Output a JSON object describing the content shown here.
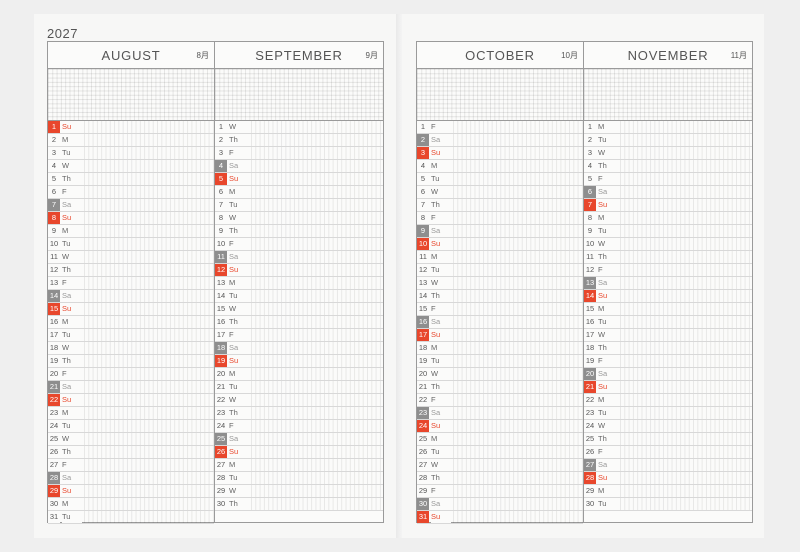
{
  "year": "2027",
  "months": [
    {
      "name": "AUGUST",
      "num": "8月",
      "days": [
        {
          "n": "1",
          "d": "Su"
        },
        {
          "n": "2",
          "d": "M"
        },
        {
          "n": "3",
          "d": "Tu"
        },
        {
          "n": "4",
          "d": "W"
        },
        {
          "n": "5",
          "d": "Th"
        },
        {
          "n": "6",
          "d": "F"
        },
        {
          "n": "7",
          "d": "Sa"
        },
        {
          "n": "8",
          "d": "Su"
        },
        {
          "n": "9",
          "d": "M"
        },
        {
          "n": "10",
          "d": "Tu"
        },
        {
          "n": "11",
          "d": "W"
        },
        {
          "n": "12",
          "d": "Th"
        },
        {
          "n": "13",
          "d": "F"
        },
        {
          "n": "14",
          "d": "Sa"
        },
        {
          "n": "15",
          "d": "Su"
        },
        {
          "n": "16",
          "d": "M"
        },
        {
          "n": "17",
          "d": "Tu"
        },
        {
          "n": "18",
          "d": "W"
        },
        {
          "n": "19",
          "d": "Th"
        },
        {
          "n": "20",
          "d": "F"
        },
        {
          "n": "21",
          "d": "Sa"
        },
        {
          "n": "22",
          "d": "Su"
        },
        {
          "n": "23",
          "d": "M"
        },
        {
          "n": "24",
          "d": "Tu"
        },
        {
          "n": "25",
          "d": "W"
        },
        {
          "n": "26",
          "d": "Th"
        },
        {
          "n": "27",
          "d": "F"
        },
        {
          "n": "28",
          "d": "Sa"
        },
        {
          "n": "29",
          "d": "Su"
        },
        {
          "n": "30",
          "d": "M"
        },
        {
          "n": "31",
          "d": "Tu"
        }
      ]
    },
    {
      "name": "SEPTEMBER",
      "num": "9月",
      "days": [
        {
          "n": "1",
          "d": "W"
        },
        {
          "n": "2",
          "d": "Th"
        },
        {
          "n": "3",
          "d": "F"
        },
        {
          "n": "4",
          "d": "Sa"
        },
        {
          "n": "5",
          "d": "Su"
        },
        {
          "n": "6",
          "d": "M"
        },
        {
          "n": "7",
          "d": "Tu"
        },
        {
          "n": "8",
          "d": "W"
        },
        {
          "n": "9",
          "d": "Th"
        },
        {
          "n": "10",
          "d": "F"
        },
        {
          "n": "11",
          "d": "Sa"
        },
        {
          "n": "12",
          "d": "Su"
        },
        {
          "n": "13",
          "d": "M"
        },
        {
          "n": "14",
          "d": "Tu"
        },
        {
          "n": "15",
          "d": "W"
        },
        {
          "n": "16",
          "d": "Th"
        },
        {
          "n": "17",
          "d": "F"
        },
        {
          "n": "18",
          "d": "Sa"
        },
        {
          "n": "19",
          "d": "Su"
        },
        {
          "n": "20",
          "d": "M"
        },
        {
          "n": "21",
          "d": "Tu"
        },
        {
          "n": "22",
          "d": "W"
        },
        {
          "n": "23",
          "d": "Th"
        },
        {
          "n": "24",
          "d": "F"
        },
        {
          "n": "25",
          "d": "Sa"
        },
        {
          "n": "26",
          "d": "Su"
        },
        {
          "n": "27",
          "d": "M"
        },
        {
          "n": "28",
          "d": "Tu"
        },
        {
          "n": "29",
          "d": "W"
        },
        {
          "n": "30",
          "d": "Th"
        }
      ]
    },
    {
      "name": "OCTOBER",
      "num": "10月",
      "days": [
        {
          "n": "1",
          "d": "F"
        },
        {
          "n": "2",
          "d": "Sa"
        },
        {
          "n": "3",
          "d": "Su"
        },
        {
          "n": "4",
          "d": "M"
        },
        {
          "n": "5",
          "d": "Tu"
        },
        {
          "n": "6",
          "d": "W"
        },
        {
          "n": "7",
          "d": "Th"
        },
        {
          "n": "8",
          "d": "F"
        },
        {
          "n": "9",
          "d": "Sa"
        },
        {
          "n": "10",
          "d": "Su"
        },
        {
          "n": "11",
          "d": "M"
        },
        {
          "n": "12",
          "d": "Tu"
        },
        {
          "n": "13",
          "d": "W"
        },
        {
          "n": "14",
          "d": "Th"
        },
        {
          "n": "15",
          "d": "F"
        },
        {
          "n": "16",
          "d": "Sa"
        },
        {
          "n": "17",
          "d": "Su"
        },
        {
          "n": "18",
          "d": "M"
        },
        {
          "n": "19",
          "d": "Tu"
        },
        {
          "n": "20",
          "d": "W"
        },
        {
          "n": "21",
          "d": "Th"
        },
        {
          "n": "22",
          "d": "F"
        },
        {
          "n": "23",
          "d": "Sa"
        },
        {
          "n": "24",
          "d": "Su"
        },
        {
          "n": "25",
          "d": "M"
        },
        {
          "n": "26",
          "d": "Tu"
        },
        {
          "n": "27",
          "d": "W"
        },
        {
          "n": "28",
          "d": "Th"
        },
        {
          "n": "29",
          "d": "F"
        },
        {
          "n": "30",
          "d": "Sa"
        },
        {
          "n": "31",
          "d": "Su"
        }
      ]
    },
    {
      "name": "NOVEMBER",
      "num": "11月",
      "days": [
        {
          "n": "1",
          "d": "M"
        },
        {
          "n": "2",
          "d": "Tu"
        },
        {
          "n": "3",
          "d": "W"
        },
        {
          "n": "4",
          "d": "Th"
        },
        {
          "n": "5",
          "d": "F"
        },
        {
          "n": "6",
          "d": "Sa"
        },
        {
          "n": "7",
          "d": "Su"
        },
        {
          "n": "8",
          "d": "M"
        },
        {
          "n": "9",
          "d": "Tu"
        },
        {
          "n": "10",
          "d": "W"
        },
        {
          "n": "11",
          "d": "Th"
        },
        {
          "n": "12",
          "d": "F"
        },
        {
          "n": "13",
          "d": "Sa"
        },
        {
          "n": "14",
          "d": "Su"
        },
        {
          "n": "15",
          "d": "M"
        },
        {
          "n": "16",
          "d": "Tu"
        },
        {
          "n": "17",
          "d": "W"
        },
        {
          "n": "18",
          "d": "Th"
        },
        {
          "n": "19",
          "d": "F"
        },
        {
          "n": "20",
          "d": "Sa"
        },
        {
          "n": "21",
          "d": "Su"
        },
        {
          "n": "22",
          "d": "M"
        },
        {
          "n": "23",
          "d": "Tu"
        },
        {
          "n": "24",
          "d": "W"
        },
        {
          "n": "25",
          "d": "Th"
        },
        {
          "n": "26",
          "d": "F"
        },
        {
          "n": "27",
          "d": "Sa"
        },
        {
          "n": "28",
          "d": "Su"
        },
        {
          "n": "29",
          "d": "M"
        },
        {
          "n": "30",
          "d": "Tu"
        }
      ]
    }
  ],
  "colors": {
    "sunday": "#e8472c",
    "saturday": "#8e8e8e",
    "grid_line": "#9a9a9a"
  }
}
